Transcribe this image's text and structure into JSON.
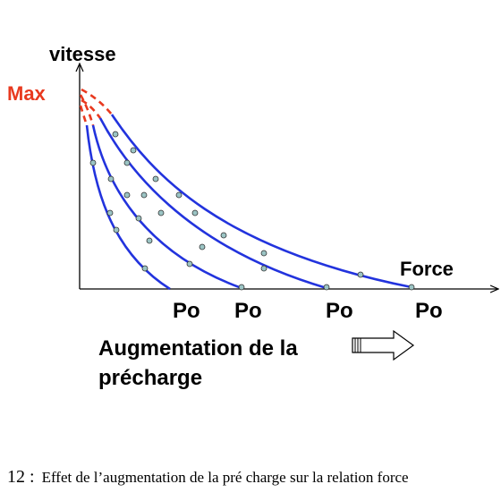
{
  "labels": {
    "y_axis": "vitesse",
    "max": "Max",
    "x_axis": "Force",
    "po": [
      "Po",
      "Po",
      "Po",
      "Po"
    ]
  },
  "annotation": {
    "lines": [
      "Augmentation de la",
      "précharge"
    ]
  },
  "caption": {
    "number": "12 :",
    "text": "Effet de l’augmentation de la pré charge sur la relation force"
  }
}
